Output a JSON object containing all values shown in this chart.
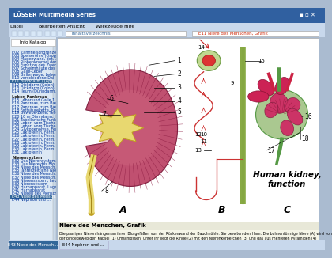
{
  "window_title": "LÜSSER Multimedia Series",
  "menu_items": [
    "Datei",
    "Bearbeiten",
    "Ansicht",
    "Werkzeuge",
    "Hilfe"
  ],
  "tab1": "Info Katalog",
  "tab2": "E11 Niere des Menschen, Grafik",
  "titlebar_bg": "#003a7a",
  "titlebar_gradient_end": "#3a7acc",
  "menubar_bg": "#c8daf0",
  "toolbar_bg": "#c8daf0",
  "sidebar_bg": "#dce8f0",
  "main_bg": "#ffffff",
  "bottom_text_title": "Niere des Menschen, Grafik",
  "bottom_text": "Die paarigen Nieren hängen an ihren Blutgefäßen von der Rückenwand der Bauchhöhle. Sie bereiten den Harn. Die bohnenförmige Niere (A) wird von der bindegewebigen Kapsel (1) umschlossen. Unter ihr liegt die Rinde (2) mit den Nierenkörperchen (3) und das aus mehreren Pyramiden (4) bestehende Mark.",
  "bottom_bg": "#f0f0e8",
  "kidney_outer": "#b84060",
  "kidney_cortex": "#d87090",
  "kidney_medulla_stripe": "#9b2040",
  "pelvis_fill": "#e8d870",
  "pelvis_edge": "#b8a020",
  "ureter_fill": "#e8d870",
  "nephron_color": "#cc3333",
  "collect_tube_color": "#88aa44",
  "glom_outer": "#aac890",
  "glom_inner": "#cc3366",
  "glom_tuft": "#dd4477",
  "label_color": "#000000",
  "diagram_title": "Human kidney,\nfunction",
  "sidebar_items": [
    [
      "Info Katalog dropdown",
      false,
      false
    ],
    [
      "",
      false,
      false
    ],
    [
      "E02 Zahnfleischgrenze",
      false,
      false
    ],
    [
      "E03 Speiseröhre (Ösopha.",
      false,
      false
    ],
    [
      "E04 Magenwand, det. 1",
      false,
      false
    ],
    [
      "E05 Rippenknorpel der R.",
      false,
      false
    ],
    [
      "E06 Funktion des Zwerchf.",
      false,
      false
    ],
    [
      "E07 Schleimhäute des Kör.",
      false,
      false
    ],
    [
      "E08 Galle-Leber",
      false,
      false
    ],
    [
      "E09 Gallenwege, Leber.",
      false,
      false
    ],
    [
      "E10 verschiedene Dal",
      false,
      false
    ],
    [
      "E11 Blinddarm / (App.",
      false,
      true
    ],
    [
      "E12 Dickdarm (Colon), 2.",
      false,
      false
    ],
    [
      "E13 Dickdarm (Colon), 3.",
      false,
      false
    ],
    [
      "E14 Ileum (Dünndarm...",
      false,
      false
    ],
    [
      "",
      false,
      false
    ],
    [
      "Leber, Pankreas",
      true,
      false
    ],
    [
      "E15 Leber und Galle,1",
      false,
      false
    ],
    [
      "E16 Pankreas, zum Bau",
      false,
      false
    ],
    [
      "E17 Pankreas, zum Bau",
      false,
      false
    ],
    [
      "E18 Fettsäurekette, Pankr.",
      false,
      false
    ],
    [
      "E19 Gewebe-Zelle, Teilung",
      false,
      false
    ],
    [
      "E20 10 m Dünndarm, Innere",
      false,
      false
    ],
    [
      "E21 Tabellarische Funk.",
      false,
      false
    ],
    [
      "E22 Leber, vom Tische",
      false,
      false
    ],
    [
      "E23 Leber, vom Tische",
      false,
      false
    ],
    [
      "E24 Glykogenolyse, Ferm.",
      false,
      false
    ],
    [
      "E25 Laktoferrin, Ferm.",
      false,
      false
    ],
    [
      "E26 Laktoferrin, Ferm.",
      false,
      false
    ],
    [
      "E27 Laktoferrin, Ferm.",
      false,
      false
    ],
    [
      "E28 Laktoferrin, Ferm.",
      false,
      false
    ],
    [
      "E29 Laktoferrin, Ferm.",
      false,
      false
    ],
    [
      "E30 Laktoferrin, Ferm.",
      false,
      false
    ],
    [
      "E31 Laktoferrin",
      false,
      false
    ],
    [
      "",
      false,
      false
    ],
    [
      "Nierensystem",
      true,
      false
    ],
    [
      "E32 Das Nierensystem,",
      false,
      false
    ],
    [
      "E33 Das Niere des Blo.",
      false,
      false
    ],
    [
      "E34 Niere des Mensch.",
      false,
      false
    ],
    [
      "E35 Jahreszeitliche Nie.",
      false,
      false
    ],
    [
      "E36 Niere des Mensch.",
      false,
      false
    ],
    [
      "E37 Niere des Mensch.",
      false,
      false
    ],
    [
      "E38 Nierensystem, Leb.",
      false,
      false
    ],
    [
      "E39 Nierensystem",
      false,
      false
    ],
    [
      "E40 Harnapparat, Lage",
      false,
      false
    ],
    [
      "E41 Harnapparat",
      false,
      false
    ],
    [
      "E42 Nieren des Mensch.",
      false,
      false
    ],
    [
      "E43 Niere des Mensch.",
      false,
      true
    ],
    [
      "E44 Nephron und ...",
      false,
      false
    ]
  ],
  "status_items": [
    "E43 Niere des Mensch...",
    "E44 Nephron und ..."
  ]
}
